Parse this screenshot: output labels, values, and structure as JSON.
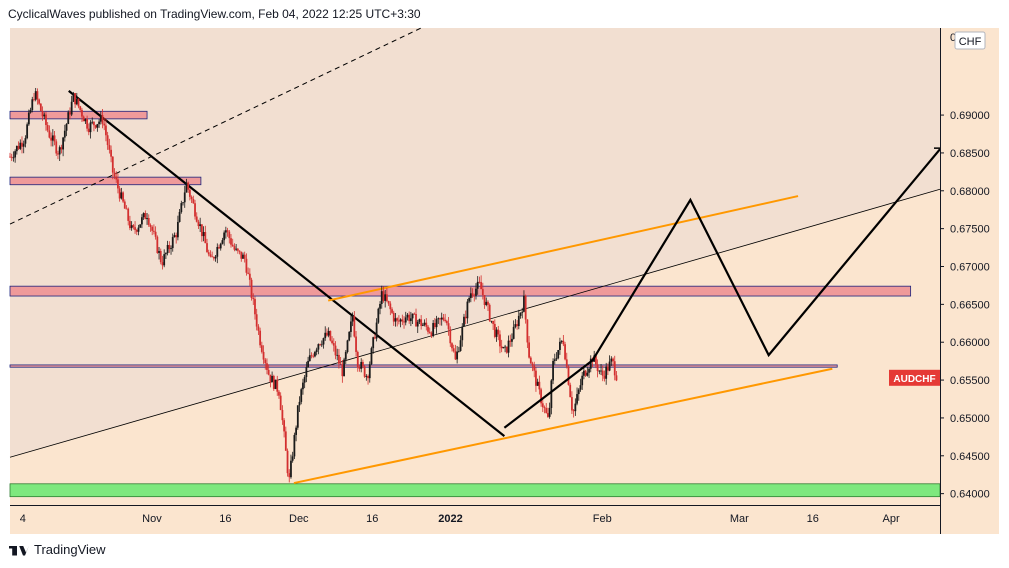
{
  "header": {
    "text": "CyclicalWaves published on TradingView.com, Feb 04, 2022 12:25 UTC+3:30"
  },
  "brand": {
    "name": "TradingView"
  },
  "chart_data": {
    "type": "candlestick",
    "symbol": "AUDCHF",
    "currency": "CHF",
    "price_label": "AUDCHF",
    "y_axis_range": [
      0.6385,
      0.7015
    ],
    "y_ticks": [
      "0.69000",
      "0.68500",
      "0.68000",
      "0.67500",
      "0.67000",
      "0.66500",
      "0.66000",
      "0.65500",
      "0.65000",
      "0.64500",
      "0.64000"
    ],
    "y_tick_values": [
      0.69,
      0.685,
      0.68,
      0.675,
      0.67,
      0.665,
      0.66,
      0.655,
      0.65,
      0.645,
      0.64
    ],
    "y_top_partial_label": "0",
    "x_ticks": [
      "4",
      "Nov",
      "16",
      "Dec",
      "16",
      "2022",
      "Feb",
      "Mar",
      "16",
      "Apr"
    ],
    "x_tick_days": [
      -27,
      0,
      15,
      30,
      45,
      61,
      92,
      120,
      135,
      151
    ],
    "date_axis_origin": "2021-11-01",
    "price_path_days": [
      -29,
      -26,
      -24,
      -21,
      -19,
      -16,
      -13,
      -10,
      -8,
      -6,
      -4,
      -1,
      2,
      5,
      7,
      10,
      12,
      15,
      17,
      19,
      22,
      24,
      26,
      28,
      30,
      32,
      34,
      36,
      39,
      41,
      42,
      44,
      47,
      50,
      52,
      55,
      57,
      60,
      62,
      65,
      67,
      70,
      72,
      74,
      76,
      77,
      79,
      81,
      82,
      84,
      86,
      88,
      90,
      92,
      94,
      95
    ],
    "price_path_values": [
      0.6845,
      0.687,
      0.693,
      0.6875,
      0.685,
      0.6925,
      0.6885,
      0.6895,
      0.6825,
      0.6785,
      0.6745,
      0.677,
      0.6705,
      0.6745,
      0.681,
      0.675,
      0.6705,
      0.675,
      0.672,
      0.671,
      0.6605,
      0.6555,
      0.6535,
      0.6415,
      0.652,
      0.6575,
      0.66,
      0.661,
      0.656,
      0.6635,
      0.6575,
      0.6555,
      0.6665,
      0.6625,
      0.6635,
      0.6625,
      0.6615,
      0.6635,
      0.6575,
      0.6665,
      0.6675,
      0.6615,
      0.6585,
      0.6615,
      0.6655,
      0.6585,
      0.6535,
      0.6495,
      0.6575,
      0.6605,
      0.6505,
      0.6555,
      0.658,
      0.6555,
      0.6575,
      0.6555
    ],
    "zones": [
      {
        "type": "supply",
        "from_day": -29,
        "to_day": -1,
        "low": 0.6895,
        "high": 0.6905,
        "color": "#ef9a9a"
      },
      {
        "type": "supply",
        "from_day": -29,
        "to_day": 10,
        "low": 0.6808,
        "high": 0.6818,
        "color": "#ef9a9a"
      },
      {
        "type": "resistance",
        "from_day": -29,
        "to_day": 155,
        "low": 0.6661,
        "high": 0.6674,
        "color": "#ef9a9a"
      },
      {
        "type": "support",
        "from_day": -29,
        "to_day": 140,
        "low": 0.6567,
        "high": 0.657,
        "color": "#ef9a9a"
      },
      {
        "type": "demand",
        "from_day": -29,
        "to_day": 161,
        "low": 0.6396,
        "high": 0.6413,
        "color": "#7ee87e"
      }
    ],
    "trendlines": [
      {
        "style": "solid",
        "color": "#000000",
        "width": 2.2,
        "from": [
          -17,
          0.6932
        ],
        "to": [
          72,
          0.6476
        ]
      },
      {
        "style": "solid",
        "color": "#ff9800",
        "width": 2,
        "from": [
          29,
          0.6414
        ],
        "to": [
          139,
          0.6565
        ]
      },
      {
        "style": "solid",
        "color": "#ff9800",
        "width": 2,
        "from": [
          36,
          0.6655
        ],
        "to": [
          132,
          0.6793
        ]
      },
      {
        "style": "solid",
        "color": "#000000",
        "width": 0.8,
        "from": [
          -29,
          0.6448
        ],
        "to": [
          161,
          0.6802
        ]
      },
      {
        "style": "dashed",
        "color": "#000000",
        "width": 1,
        "from": [
          -29,
          0.6756
        ],
        "to": [
          55,
          0.7015
        ]
      }
    ],
    "projection_path": [
      [
        72,
        0.6487
      ],
      [
        90,
        0.6576
      ],
      [
        110,
        0.6788
      ],
      [
        126,
        0.6583
      ],
      [
        161,
        0.6855
      ]
    ],
    "last_price": 0.6553,
    "colors": {
      "candle_up": "#1a1a1a",
      "candle_down": "#d32f2f",
      "background": "#fbe5cf",
      "upper_zone": "#f2dfd1",
      "price_label_bg": "#e53935"
    }
  }
}
